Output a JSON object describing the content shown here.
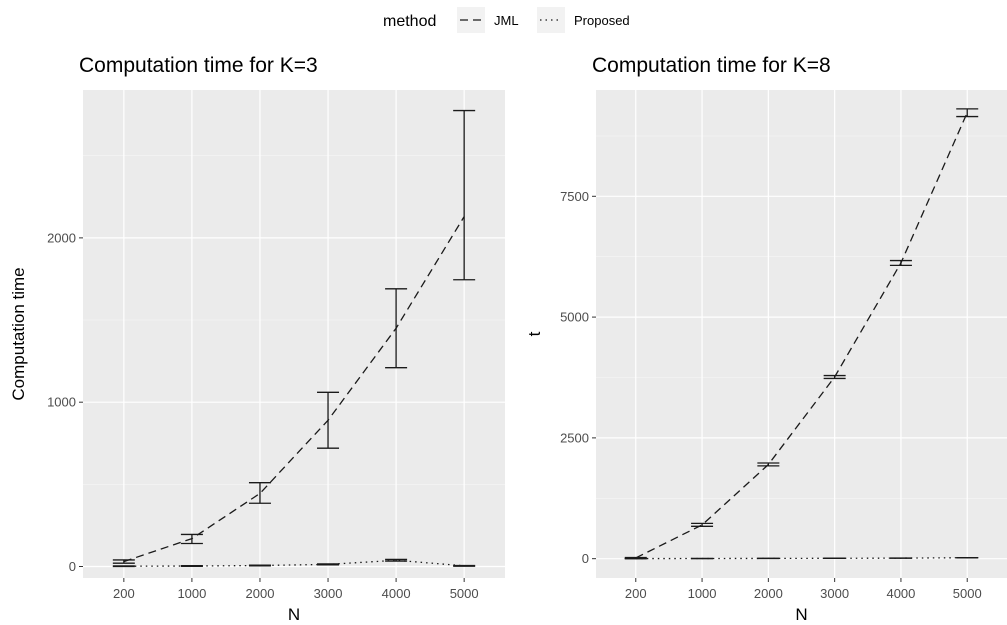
{
  "legend": {
    "title": "method",
    "items": [
      {
        "label": "JML",
        "dash": "8,5"
      },
      {
        "label": "Proposed",
        "dash": "1.5,4"
      }
    ]
  },
  "colors": {
    "panel_bg": "#ebebeb",
    "grid_major": "#ffffff",
    "line": "#1a1a1a",
    "tick_text": "#4d4d4d"
  },
  "chart_data": [
    {
      "type": "line",
      "title": "Computation time for K=3",
      "xlabel": "N",
      "ylabel": "Computation time",
      "categories": [
        "200",
        "1000",
        "2000",
        "3000",
        "4000",
        "5000"
      ],
      "ylim": [
        -70,
        2900
      ],
      "yticks": [
        0,
        1000,
        2000
      ],
      "grid": true,
      "series": [
        {
          "name": "JML",
          "values": [
            30,
            170,
            445,
            890,
            1450,
            2130
          ],
          "errors": [
            [
              20,
              40
            ],
            [
              140,
              195
            ],
            [
              385,
              510
            ],
            [
              720,
              1060
            ],
            [
              1210,
              1690
            ],
            [
              1745,
              2775
            ]
          ]
        },
        {
          "name": "Proposed",
          "values": [
            2,
            3,
            6,
            13,
            38,
            4
          ],
          "errors": [
            [
              0,
              4
            ],
            [
              1,
              5
            ],
            [
              4,
              8
            ],
            [
              10,
              16
            ],
            [
              33,
              43
            ],
            [
              2,
              6
            ]
          ]
        }
      ]
    },
    {
      "type": "line",
      "title": "Computation time for K=8",
      "xlabel": "N",
      "ylabel": "t",
      "categories": [
        "200",
        "1000",
        "2000",
        "3000",
        "4000",
        "5000"
      ],
      "ylim": [
        -400,
        9700
      ],
      "yticks": [
        0,
        2500,
        5000,
        7500
      ],
      "grid": true,
      "series": [
        {
          "name": "JML",
          "values": [
            15,
            700,
            1950,
            3760,
            6120,
            9230
          ],
          "errors": [
            [
              5,
              25
            ],
            [
              670,
              730
            ],
            [
              1920,
              1980
            ],
            [
              3730,
              3790
            ],
            [
              6070,
              6170
            ],
            [
              9150,
              9310
            ]
          ]
        },
        {
          "name": "Proposed",
          "values": [
            2,
            3,
            5,
            8,
            12,
            20
          ],
          "errors": [
            [
              0,
              4
            ],
            [
              1,
              5
            ],
            [
              3,
              7
            ],
            [
              6,
              10
            ],
            [
              10,
              14
            ],
            [
              18,
              22
            ]
          ]
        }
      ]
    }
  ]
}
